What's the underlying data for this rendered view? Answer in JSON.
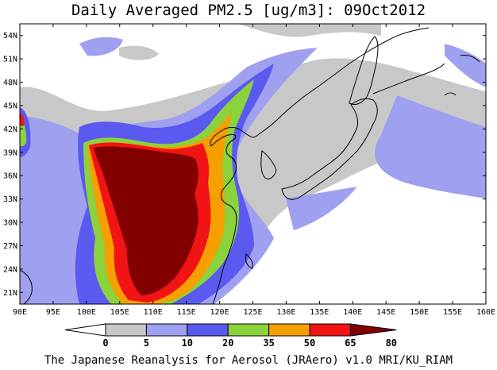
{
  "title": "Daily Averaged PM2.5 [ug/m3]: 09Oct2012",
  "footer": "The Japanese Reanalysis for Aerosol (JRAero) v1.0 MRI/KU_RIAM",
  "map": {
    "lon_range": [
      90,
      160
    ],
    "lat_range": [
      19.5,
      55.5
    ],
    "lat_ticks": [
      "54N",
      "51N",
      "48N",
      "45N",
      "42N",
      "39N",
      "36N",
      "33N",
      "30N",
      "27N",
      "24N",
      "21N"
    ],
    "lon_ticks": [
      "90E",
      "95E",
      "100E",
      "105E",
      "110E",
      "115E",
      "120E",
      "125E",
      "130E",
      "135E",
      "140E",
      "145E",
      "150E",
      "155E",
      "160E"
    ]
  },
  "colorbar": {
    "levels": [
      "0",
      "5",
      "10",
      "20",
      "35",
      "50",
      "65",
      "80"
    ],
    "colors": [
      "#ffffff",
      "#c8c8c8",
      "#a0a0f0",
      "#5a5af0",
      "#8cd23c",
      "#f5a000",
      "#f01414",
      "#820000"
    ]
  },
  "palette": {
    "ocean_bg": "#ffffff",
    "gray": "#c8c8c8",
    "light_blue": "#a0a0f0",
    "blue": "#5a5af0",
    "green": "#8cd23c",
    "orange": "#f5a000",
    "red": "#f01414",
    "dark_red": "#820000"
  }
}
